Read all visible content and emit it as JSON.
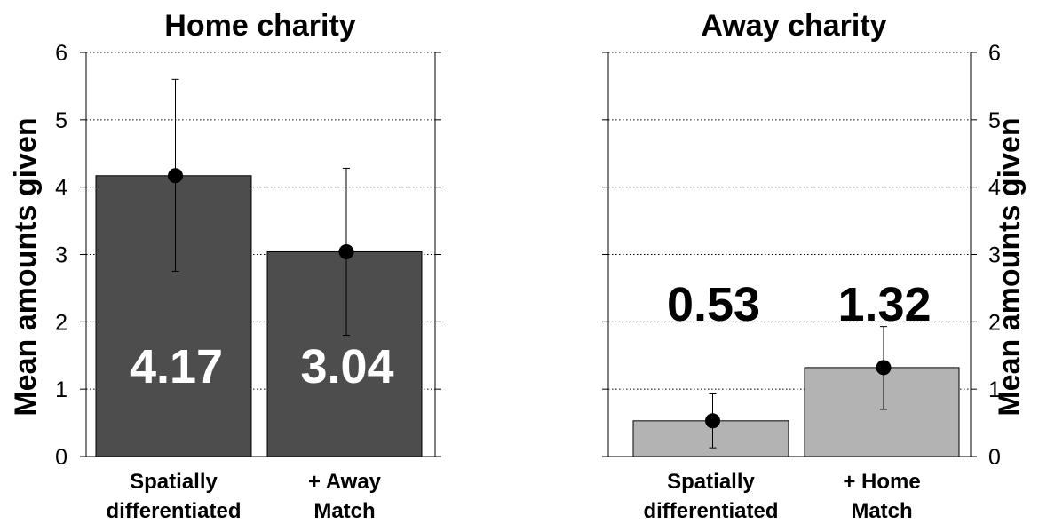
{
  "chart_data": [
    {
      "type": "bar",
      "title": "Home charity",
      "ylabel": "Mean amounts given",
      "ylim": [
        0,
        6
      ],
      "yticks": [
        0,
        1,
        2,
        3,
        4,
        5,
        6
      ],
      "grid": "horizontal dotted",
      "categories": [
        [
          "Spatially",
          "differentiated"
        ],
        [
          "+ Away",
          "Match"
        ]
      ],
      "values": [
        4.17,
        3.04
      ],
      "data_labels": [
        "4.17",
        "3.04"
      ],
      "error_low": [
        2.75,
        1.8
      ],
      "error_high": [
        5.6,
        4.28
      ],
      "bar_color": "#4d4d4d",
      "label_color": "#ffffff",
      "label_position": "inside",
      "axis_side": "left"
    },
    {
      "type": "bar",
      "title": "Away charity",
      "ylabel": "Mean amounts given",
      "ylim": [
        0,
        6
      ],
      "yticks": [
        0,
        1,
        2,
        3,
        4,
        5,
        6
      ],
      "grid": "horizontal dotted",
      "categories": [
        [
          "Spatially",
          "differentiated"
        ],
        [
          "+ Home",
          "Match"
        ]
      ],
      "values": [
        0.53,
        1.32
      ],
      "data_labels": [
        "0.53",
        "1.32"
      ],
      "error_low": [
        0.13,
        0.7
      ],
      "error_high": [
        0.93,
        1.93
      ],
      "bar_color": "#b3b3b3",
      "label_color": "#000000",
      "label_position": "above",
      "axis_side": "right"
    }
  ]
}
